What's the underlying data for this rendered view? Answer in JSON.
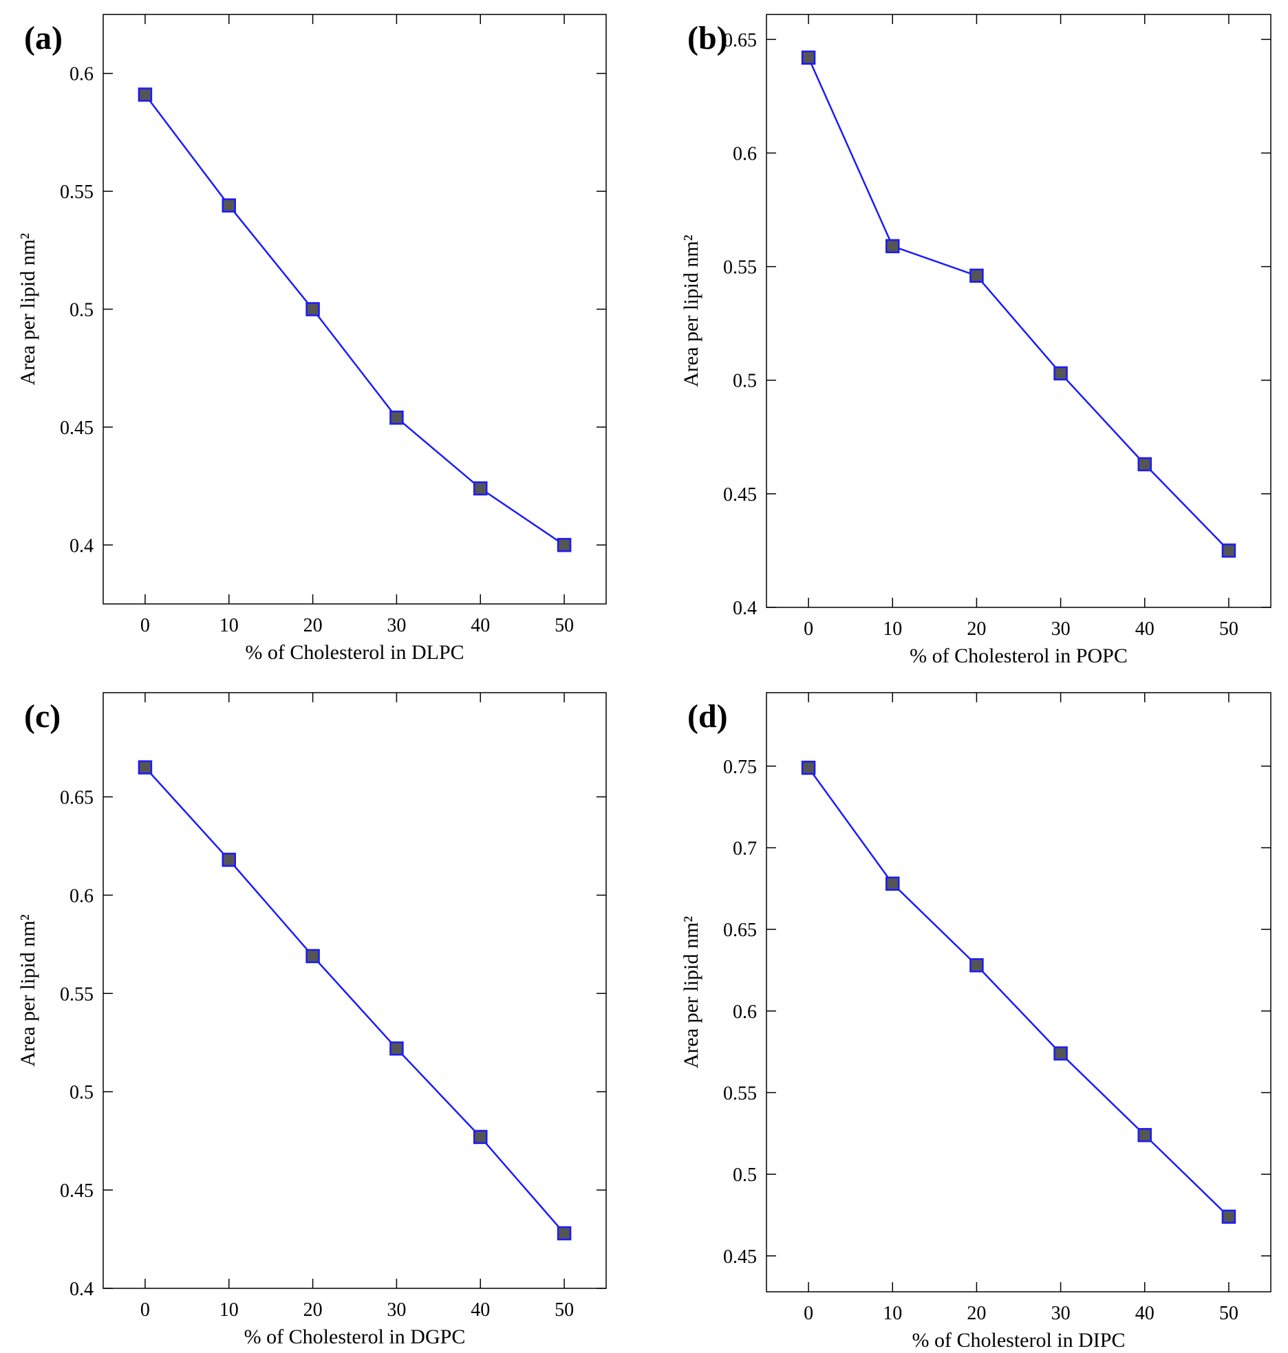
{
  "chart_data": [
    {
      "type": "line",
      "panel_label": "(a)",
      "xlabel": "% of Cholesterol in DLPC",
      "ylabel": "Area per lipid nm²",
      "x": [
        0,
        10,
        20,
        30,
        40,
        50
      ],
      "values": [
        0.591,
        0.544,
        0.5,
        0.454,
        0.424,
        0.4
      ],
      "color": "#1a1aff",
      "xlim": [
        -5,
        55
      ],
      "xticks": [
        0,
        10,
        20,
        30,
        40,
        50
      ],
      "ylim": [
        0.375,
        0.625
      ],
      "yticks": [
        0.4,
        0.45,
        0.5,
        0.55,
        0.6
      ]
    },
    {
      "type": "line",
      "panel_label": "(b)",
      "xlabel": "% of Cholesterol in POPC",
      "ylabel": "Area per lipid nm²",
      "x": [
        0,
        10,
        20,
        30,
        40,
        50
      ],
      "values": [
        0.642,
        0.559,
        0.546,
        0.503,
        0.463,
        0.425
      ],
      "color": "#1a1aff",
      "xlim": [
        -5,
        55
      ],
      "xticks": [
        0,
        10,
        20,
        30,
        40,
        50
      ],
      "ylim": [
        0.4,
        0.661
      ],
      "yticks": [
        0.4,
        0.45,
        0.5,
        0.55,
        0.6,
        0.65
      ]
    },
    {
      "type": "line",
      "panel_label": "(c)",
      "xlabel": "% of Cholesterol in DGPC",
      "ylabel": "Area per lipid nm²",
      "x": [
        0,
        10,
        20,
        30,
        40,
        50
      ],
      "values": [
        0.665,
        0.618,
        0.569,
        0.522,
        0.477,
        0.428
      ],
      "color": "#1a1aff",
      "xlim": [
        -5,
        55
      ],
      "xticks": [
        0,
        10,
        20,
        30,
        40,
        50
      ],
      "ylim": [
        0.4,
        0.703
      ],
      "yticks": [
        0.4,
        0.45,
        0.5,
        0.55,
        0.6,
        0.65
      ]
    },
    {
      "type": "line",
      "panel_label": "(d)",
      "xlabel": "% of Cholesterol in DIPC",
      "ylabel": "Area per lipid nm²",
      "x": [
        0,
        10,
        20,
        30,
        40,
        50
      ],
      "values": [
        0.749,
        0.678,
        0.628,
        0.574,
        0.524,
        0.474
      ],
      "color": "#1a1aff",
      "xlim": [
        -5,
        55
      ],
      "xticks": [
        0,
        10,
        20,
        30,
        40,
        50
      ],
      "ylim": [
        0.428,
        0.795
      ],
      "yticks": [
        0.45,
        0.5,
        0.55,
        0.6,
        0.65,
        0.7,
        0.75
      ]
    }
  ]
}
